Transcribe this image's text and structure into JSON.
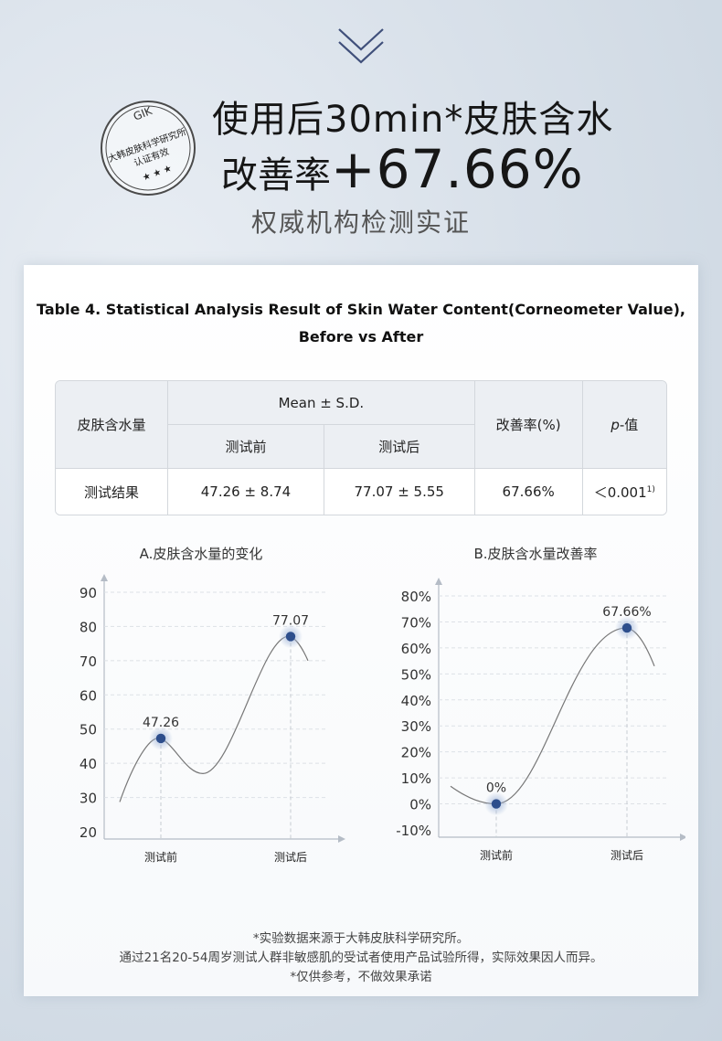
{
  "seal": {
    "top": "GIK",
    "line1": "大韩皮肤科学研究所",
    "line2": "认证有效",
    "stars": "★ ★ ★"
  },
  "headline": {
    "line1": "使用后30min*皮肤含水",
    "line2_prefix": "改善率",
    "line2_value": "+67.66%",
    "line3": "权威机构检测实证"
  },
  "table": {
    "caption1": "Table 4. Statistical Analysis Result of Skin Water Content(Corneometer Value),",
    "caption2": "Before vs After",
    "h_item": "皮肤含水量",
    "h_mean": "Mean ± S.D.",
    "h_before": "测试前",
    "h_after": "测试后",
    "h_rate": "改善率(%)",
    "h_p_italic": "p",
    "h_p_rest": "-值",
    "row_label": "测试结果",
    "before": "47.26 ± 8.74",
    "after": "77.07 ± 5.55",
    "rate": "67.66%",
    "p": "＜0.001",
    "p_sup": "1)"
  },
  "chart_data": [
    {
      "type": "line",
      "title": "A.皮肤含水量的变化",
      "categories": [
        "测试前",
        "测试后"
      ],
      "values": [
        47.26,
        77.07
      ],
      "labels": [
        "47.26",
        "77.07"
      ],
      "ylim": [
        20,
        90
      ],
      "yticks": [
        "20",
        "30",
        "40",
        "50",
        "60",
        "70",
        "80",
        "90"
      ],
      "grid": true
    },
    {
      "type": "line",
      "title": "B.皮肤含水量改善率",
      "categories": [
        "测试前",
        "测试后"
      ],
      "values": [
        0,
        67.66
      ],
      "labels": [
        "0%",
        "67.66%"
      ],
      "ylim": [
        -10,
        80
      ],
      "yticks": [
        "-10%",
        "0%",
        "10%",
        "20%",
        "30%",
        "40%",
        "50%",
        "60%",
        "70%",
        "80%"
      ],
      "grid": true
    }
  ],
  "footnote": {
    "line1": "*实验数据来源于大韩皮肤科学研究所。",
    "line2": "通过21名20-54周岁测试人群非敏感肌的受试者使用产品试验所得，实际效果因人而异。",
    "line3": "*仅供参考，不做效果承诺"
  },
  "colors": {
    "dot": "#2d4e8c",
    "glow": "#9fb4d8",
    "line": "#777777",
    "chevron": "#3f4f7a"
  }
}
